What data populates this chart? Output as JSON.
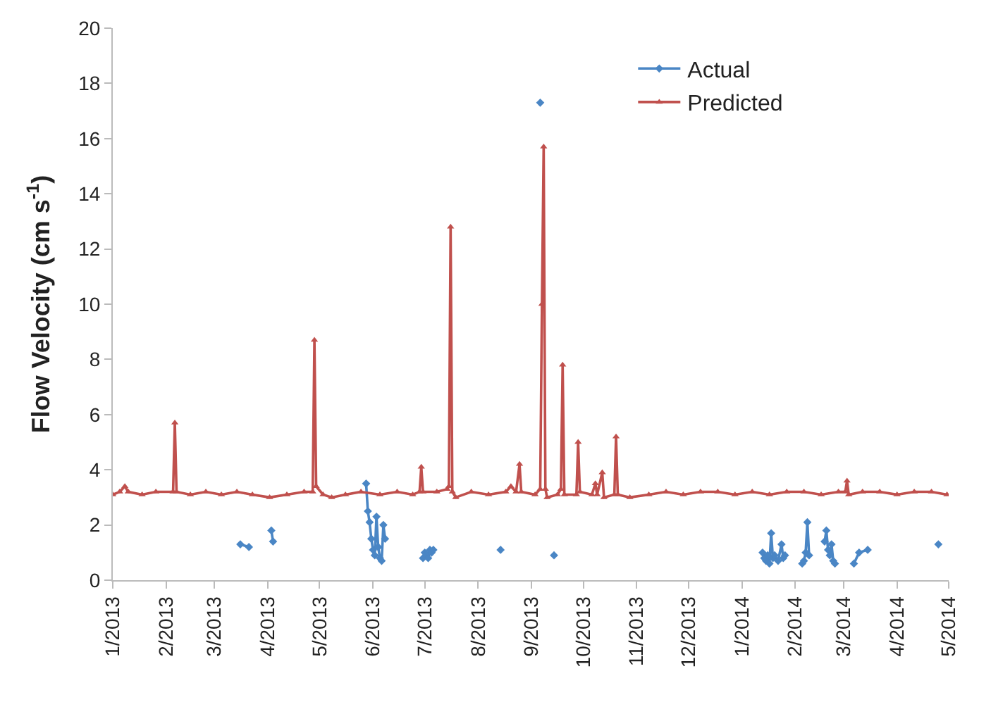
{
  "chart_data": {
    "type": "line",
    "ylabel": "Flow Velocity (cm s$^{-1}$)",
    "xlim": [
      "2013-01-01",
      "2014-05-01"
    ],
    "xticks": [
      {
        "value": "2013-01-01",
        "label": "1/2013"
      },
      {
        "value": "2013-02-01",
        "label": "2/2013"
      },
      {
        "value": "2013-03-01",
        "label": "3/2013"
      },
      {
        "value": "2013-04-01",
        "label": "4/2013"
      },
      {
        "value": "2013-05-01",
        "label": "5/2013"
      },
      {
        "value": "2013-06-01",
        "label": "6/2013"
      },
      {
        "value": "2013-07-01",
        "label": "7/2013"
      },
      {
        "value": "2013-08-01",
        "label": "8/2013"
      },
      {
        "value": "2013-09-01",
        "label": "9/2013"
      },
      {
        "value": "2013-10-01",
        "label": "10/2013"
      },
      {
        "value": "2013-11-01",
        "label": "11/2013"
      },
      {
        "value": "2013-12-01",
        "label": "12/2013"
      },
      {
        "value": "2014-01-01",
        "label": "1/2014"
      },
      {
        "value": "2014-02-01",
        "label": "2/2014"
      },
      {
        "value": "2014-03-01",
        "label": "3/2014"
      },
      {
        "value": "2014-04-01",
        "label": "4/2014"
      },
      {
        "value": "2014-05-01",
        "label": "5/2014"
      }
    ],
    "ylim": [
      0,
      20
    ],
    "yticks": [
      0,
      2,
      4,
      6,
      8,
      10,
      12,
      14,
      16,
      18,
      20
    ],
    "legend": "top right",
    "series": [
      {
        "name": "Actual",
        "color": "#4a86c5",
        "marker": "diamond",
        "x": [
          "2013-03-16",
          "2013-03-21",
          "2013-03-22",
          "2013-04-03",
          "2013-04-04",
          "2013-04-05",
          "2013-05-28",
          "2013-05-29",
          "2013-05-30",
          "2013-05-31",
          "2013-06-01",
          "2013-06-02",
          "2013-06-03",
          "2013-06-04",
          "2013-06-05",
          "2013-06-06",
          "2013-06-07",
          "2013-06-08",
          "2013-06-09",
          "2013-06-30",
          "2013-07-01",
          "2013-07-02",
          "2013-07-03",
          "2013-07-04",
          "2013-07-05",
          "2013-07-06",
          "2013-07-07",
          "2013-08-14",
          "2013-08-15",
          "2013-09-06",
          "2013-09-07",
          "2013-09-14",
          "2013-09-15",
          "2014-01-13",
          "2014-01-14",
          "2014-01-15",
          "2014-01-16",
          "2014-01-17",
          "2014-01-18",
          "2014-01-19",
          "2014-01-20",
          "2014-01-22",
          "2014-01-24",
          "2014-01-25",
          "2014-01-26",
          "2014-01-28",
          "2014-02-05",
          "2014-02-06",
          "2014-02-07",
          "2014-02-08",
          "2014-02-09",
          "2014-02-10",
          "2014-02-18",
          "2014-02-19",
          "2014-02-20",
          "2014-02-21",
          "2014-02-22",
          "2014-02-23",
          "2014-02-24",
          "2014-02-25",
          "2014-03-07",
          "2014-03-10",
          "2014-03-15",
          "2014-04-01",
          "2014-04-25"
        ],
        "values": [
          1.3,
          1.2,
          null,
          1.8,
          1.4,
          null,
          3.5,
          2.5,
          2.1,
          1.5,
          1.1,
          0.9,
          2.3,
          1.2,
          0.8,
          0.7,
          2.0,
          1.5,
          null,
          0.8,
          1.0,
          0.9,
          0.8,
          1.1,
          1.0,
          1.1,
          null,
          1.1,
          null,
          17.3,
          null,
          0.9,
          null,
          1.0,
          0.8,
          0.7,
          0.9,
          0.6,
          1.7,
          0.8,
          0.9,
          0.7,
          1.3,
          0.8,
          0.9,
          null,
          0.6,
          0.7,
          1.0,
          2.1,
          0.9,
          null,
          1.4,
          1.8,
          1.1,
          0.9,
          1.3,
          0.7,
          0.6,
          null,
          0.6,
          1.0,
          1.1,
          null,
          1.3
        ]
      },
      {
        "name": "Predicted",
        "color": "#c0504d",
        "marker": "triangle",
        "x": [
          "2013-01-01",
          "2013-01-05",
          "2013-01-08",
          "2013-01-10",
          "2013-01-18",
          "2013-01-26",
          "2013-02-05",
          "2013-02-06",
          "2013-02-07",
          "2013-02-15",
          "2013-02-24",
          "2013-03-05",
          "2013-03-14",
          "2013-03-23",
          "2013-04-02",
          "2013-04-12",
          "2013-04-22",
          "2013-04-27",
          "2013-04-28",
          "2013-04-29",
          "2013-05-03",
          "2013-05-08",
          "2013-05-16",
          "2013-05-25",
          "2013-06-05",
          "2013-06-15",
          "2013-06-24",
          "2013-06-28",
          "2013-06-29",
          "2013-06-30",
          "2013-07-08",
          "2013-07-14",
          "2013-07-15",
          "2013-07-16",
          "2013-07-17",
          "2013-07-19",
          "2013-07-28",
          "2013-08-07",
          "2013-08-17",
          "2013-08-20",
          "2013-08-23",
          "2013-08-25",
          "2013-08-26",
          "2013-09-03",
          "2013-09-06",
          "2013-09-07",
          "2013-09-08",
          "2013-09-09",
          "2013-09-10",
          "2013-09-16",
          "2013-09-18",
          "2013-09-19",
          "2013-09-20",
          "2013-09-27",
          "2013-09-28",
          "2013-09-29",
          "2013-10-06",
          "2013-10-08",
          "2013-10-09",
          "2013-10-12",
          "2013-10-13",
          "2013-10-19",
          "2013-10-20",
          "2013-10-21",
          "2013-10-28",
          "2013-11-08",
          "2013-11-18",
          "2013-11-28",
          "2013-12-08",
          "2013-12-18",
          "2013-12-28",
          "2014-01-07",
          "2014-01-17",
          "2014-01-27",
          "2014-02-06",
          "2014-02-16",
          "2014-02-26",
          "2014-03-02",
          "2014-03-03",
          "2014-03-04",
          "2014-03-12",
          "2014-03-22",
          "2014-04-01",
          "2014-04-11",
          "2014-04-21",
          "2014-04-30"
        ],
        "values": [
          3.1,
          3.2,
          3.4,
          3.2,
          3.1,
          3.2,
          3.2,
          5.7,
          3.2,
          3.1,
          3.2,
          3.1,
          3.2,
          3.1,
          3.0,
          3.1,
          3.2,
          3.2,
          8.7,
          3.4,
          3.1,
          3.0,
          3.1,
          3.2,
          3.1,
          3.2,
          3.1,
          3.2,
          4.1,
          3.2,
          3.2,
          3.3,
          3.4,
          12.8,
          3.2,
          3.0,
          3.2,
          3.1,
          3.2,
          3.4,
          3.2,
          4.2,
          3.2,
          3.1,
          3.3,
          10.0,
          15.7,
          3.3,
          3.0,
          3.1,
          3.3,
          7.8,
          3.1,
          3.1,
          5.0,
          3.2,
          3.1,
          3.5,
          3.1,
          3.9,
          3.0,
          3.1,
          5.2,
          3.1,
          3.0,
          3.1,
          3.2,
          3.1,
          3.2,
          3.2,
          3.1,
          3.2,
          3.1,
          3.2,
          3.2,
          3.1,
          3.2,
          3.2,
          3.6,
          3.1,
          3.2,
          3.2,
          3.1,
          3.2,
          3.2,
          3.1
        ]
      }
    ]
  }
}
